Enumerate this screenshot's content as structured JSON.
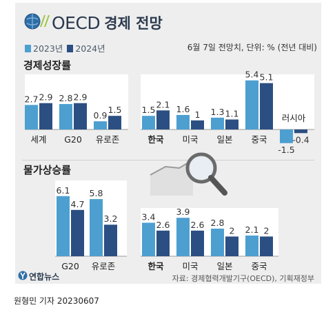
{
  "header": {
    "title_oecd": "OECD",
    "title_rest": "경제 전망",
    "note": "6월 7일 전망치, 단위: % (전년 대비)"
  },
  "legend": {
    "items": [
      {
        "label": "2023년",
        "color": "#4d9fd0"
      },
      {
        "label": "2024년",
        "color": "#2b4f82"
      }
    ]
  },
  "sections": {
    "growth_title": "경제성장률",
    "inflation_title": "물가상승률"
  },
  "footer": {
    "source": "자료: 경제협력개발기구(OECD), 기획재정부",
    "logo": "연합뉴스",
    "credit": "원형민 기자  20230607"
  },
  "chart_data": [
    {
      "type": "bar",
      "title": "경제성장률",
      "categories": [
        "세계",
        "G20",
        "유로존"
      ],
      "series": [
        {
          "name": "2023년",
          "values": [
            2.7,
            2.8,
            0.9
          ]
        },
        {
          "name": "2024년",
          "values": [
            2.9,
            2.9,
            1.5
          ]
        }
      ]
    },
    {
      "type": "bar",
      "title": "경제성장률",
      "categories": [
        "한국",
        "미국",
        "일본",
        "중국",
        "러시아"
      ],
      "series": [
        {
          "name": "2023년",
          "values": [
            1.5,
            1.6,
            1.3,
            5.4,
            -1.5
          ]
        },
        {
          "name": "2024년",
          "values": [
            2.1,
            1.0,
            1.1,
            5.1,
            -0.4
          ]
        }
      ]
    },
    {
      "type": "bar",
      "title": "물가상승률",
      "categories": [
        "G20",
        "유로존"
      ],
      "series": [
        {
          "name": "2023년",
          "values": [
            6.1,
            5.8
          ]
        },
        {
          "name": "2024년",
          "values": [
            4.7,
            3.2
          ]
        }
      ]
    },
    {
      "type": "bar",
      "title": "물가상승률",
      "categories": [
        "한국",
        "미국",
        "일본",
        "중국"
      ],
      "series": [
        {
          "name": "2023년",
          "values": [
            3.4,
            3.9,
            2.8,
            2.1
          ]
        },
        {
          "name": "2024년",
          "values": [
            2.6,
            2.6,
            2.0,
            2.0
          ]
        }
      ]
    }
  ]
}
